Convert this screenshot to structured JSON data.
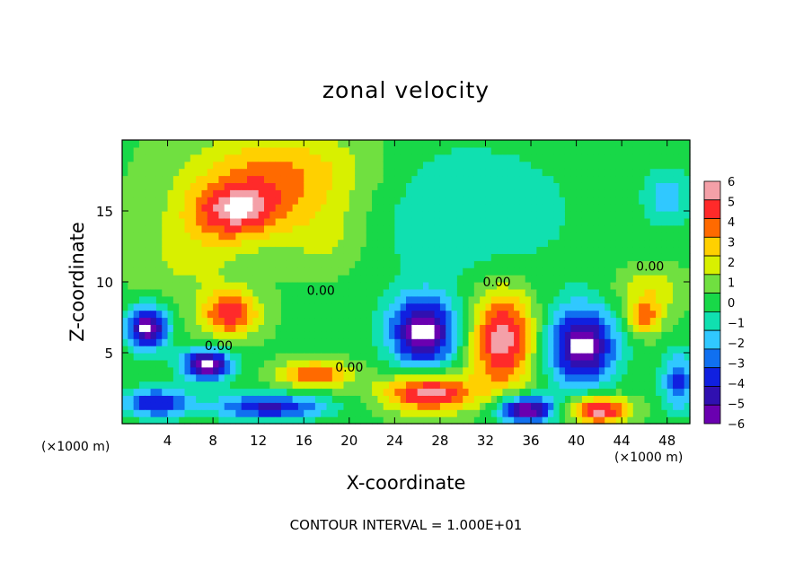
{
  "chart_data": {
    "type": "heatmap",
    "title": "zonal velocity",
    "xlabel": "X-coordinate",
    "ylabel": "Z-coordinate",
    "x_unit_left": "(×1000 m)",
    "x_unit_right": "(×1000 m)",
    "footer": "CONTOUR INTERVAL = 1.000E+01",
    "xlim": [
      0,
      50
    ],
    "ylim": [
      0,
      20
    ],
    "xticks": [
      4,
      8,
      12,
      16,
      20,
      24,
      28,
      32,
      36,
      40,
      44,
      48
    ],
    "yticks": [
      5,
      10,
      15
    ],
    "colorbar": {
      "levels": [
        6,
        5,
        4,
        3,
        2,
        1,
        0,
        -1,
        -2,
        -3,
        -4,
        -5,
        -6
      ],
      "colors": [
        "#f4a0a8",
        "#ff2a2a",
        "#ff6a00",
        "#ffd000",
        "#d8f000",
        "#70e040",
        "#18d848",
        "#10e0b0",
        "#30c8ff",
        "#1070f0",
        "#1020e0",
        "#3010b0",
        "#6a00b0"
      ]
    },
    "contour_labels": [
      {
        "text": "0.00",
        "x": 17.5,
        "y": 9.4
      },
      {
        "text": "0.00",
        "x": 8.5,
        "y": 5.5
      },
      {
        "text": "0.00",
        "x": 20.0,
        "y": 4.0
      },
      {
        "text": "0.00",
        "x": 33.0,
        "y": 10.0
      },
      {
        "text": "0.00",
        "x": 46.5,
        "y": 11.1
      }
    ],
    "blobs": [
      {
        "x": 14,
        "y": 17.5,
        "rx": 8,
        "ry": 3.2,
        "v": 3.5
      },
      {
        "x": 10,
        "y": 15,
        "rx": 4,
        "ry": 2,
        "v": 4.5
      },
      {
        "x": 6,
        "y": 12,
        "rx": 5,
        "ry": 3,
        "v": 1.5
      },
      {
        "x": 18,
        "y": 13,
        "rx": 4,
        "ry": 2.5,
        "v": 1.5
      },
      {
        "x": 9.5,
        "y": 7.8,
        "rx": 2.5,
        "ry": 1.6,
        "v": 5
      },
      {
        "x": 2.2,
        "y": 6.8,
        "rx": 1.8,
        "ry": 1.5,
        "v": -7
      },
      {
        "x": 7.5,
        "y": 4.2,
        "rx": 2.2,
        "ry": 1.1,
        "v": -7
      },
      {
        "x": 17,
        "y": 3.5,
        "rx": 3,
        "ry": 0.9,
        "v": 4.5
      },
      {
        "x": 27,
        "y": 2.2,
        "rx": 4,
        "ry": 1.3,
        "v": 6
      },
      {
        "x": 3,
        "y": 1.5,
        "rx": 3,
        "ry": 1.0,
        "v": -5
      },
      {
        "x": 13,
        "y": 1.2,
        "rx": 5,
        "ry": 0.9,
        "v": -5
      },
      {
        "x": 26.5,
        "y": 6.5,
        "rx": 3,
        "ry": 2.5,
        "v": -7
      },
      {
        "x": 33.5,
        "y": 6.0,
        "rx": 2.8,
        "ry": 3.4,
        "v": 6
      },
      {
        "x": 40.5,
        "y": 5.5,
        "rx": 3,
        "ry": 2.8,
        "v": -7
      },
      {
        "x": 35.5,
        "y": 1.0,
        "rx": 2.5,
        "ry": 1.0,
        "v": -7
      },
      {
        "x": 42,
        "y": 1.0,
        "rx": 2.5,
        "ry": 1.0,
        "v": 6
      },
      {
        "x": 46,
        "y": 7.5,
        "rx": 1.5,
        "ry": 1.2,
        "v": 4
      },
      {
        "x": 46.5,
        "y": 9.5,
        "rx": 3,
        "ry": 1.5,
        "v": 2
      },
      {
        "x": 30,
        "y": 15,
        "rx": 10,
        "ry": 5,
        "v": -1.8
      },
      {
        "x": 48,
        "y": 16,
        "rx": 2,
        "ry": 2,
        "v": -2.5
      },
      {
        "x": 49,
        "y": 3,
        "rx": 1.5,
        "ry": 2,
        "v": -4
      }
    ]
  }
}
